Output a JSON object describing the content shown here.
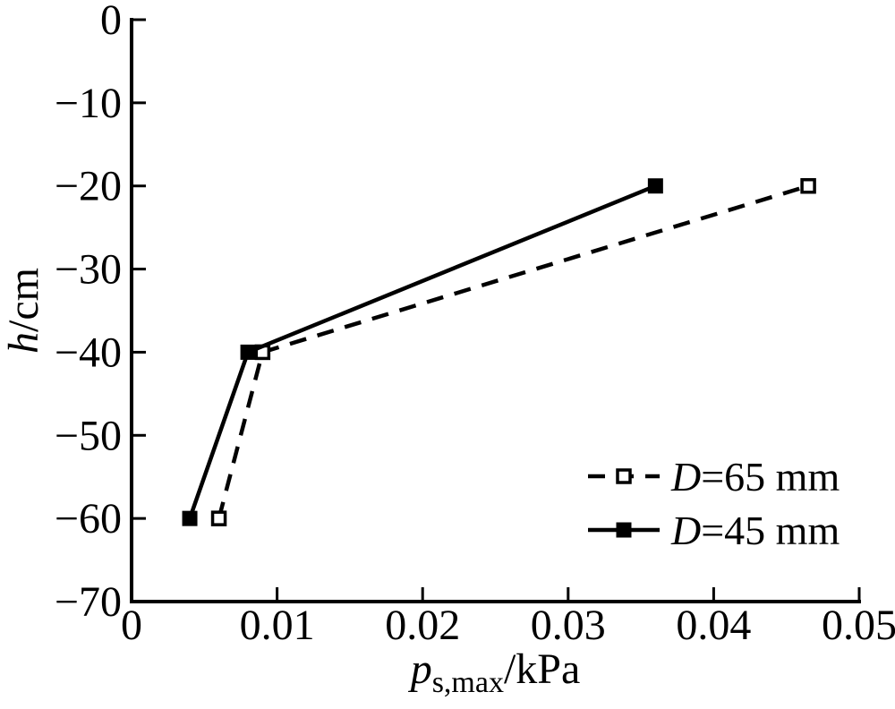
{
  "page": {
    "background": "#ffffff",
    "foreground": "#000000"
  },
  "chart_data": {
    "type": "line",
    "title": "",
    "xlabel": {
      "variable": "p",
      "subscript": "s,max",
      "unit": "/kPa",
      "plain": "p s,max /kPa"
    },
    "ylabel": {
      "variable": "h",
      "unit": "/cm",
      "plain": "h/cm"
    },
    "xlim": [
      0,
      0.05
    ],
    "ylim": [
      -70,
      0
    ],
    "x_ticks": [
      0,
      0.01,
      0.02,
      0.03,
      0.04,
      0.05
    ],
    "x_tick_labels": [
      "0",
      "0.01",
      "0.02",
      "0.03",
      "0.04",
      "0.05"
    ],
    "y_ticks": [
      0,
      -10,
      -20,
      -30,
      -40,
      -50,
      -60,
      -70
    ],
    "y_tick_labels": [
      "0",
      "−10",
      "−20",
      "−30",
      "−40",
      "−50",
      "−60",
      "−70"
    ],
    "grid": false,
    "legend": {
      "position": "inside-lower-right"
    },
    "colors": {
      "stroke": "#000000",
      "background": "#ffffff"
    },
    "series": [
      {
        "name": "D=65 mm",
        "legend_label": {
          "variable": "D",
          "rest": "=65 mm"
        },
        "line_style": "dashed",
        "marker": "open-square",
        "points": [
          [
            0.006,
            -60
          ],
          [
            0.009,
            -40
          ],
          [
            0.0465,
            -20
          ]
        ]
      },
      {
        "name": "D=45 mm",
        "legend_label": {
          "variable": "D",
          "rest": "=45 mm"
        },
        "line_style": "solid",
        "marker": "filled-square",
        "points": [
          [
            0.004,
            -60
          ],
          [
            0.008,
            -40
          ],
          [
            0.036,
            -20
          ]
        ]
      }
    ]
  }
}
